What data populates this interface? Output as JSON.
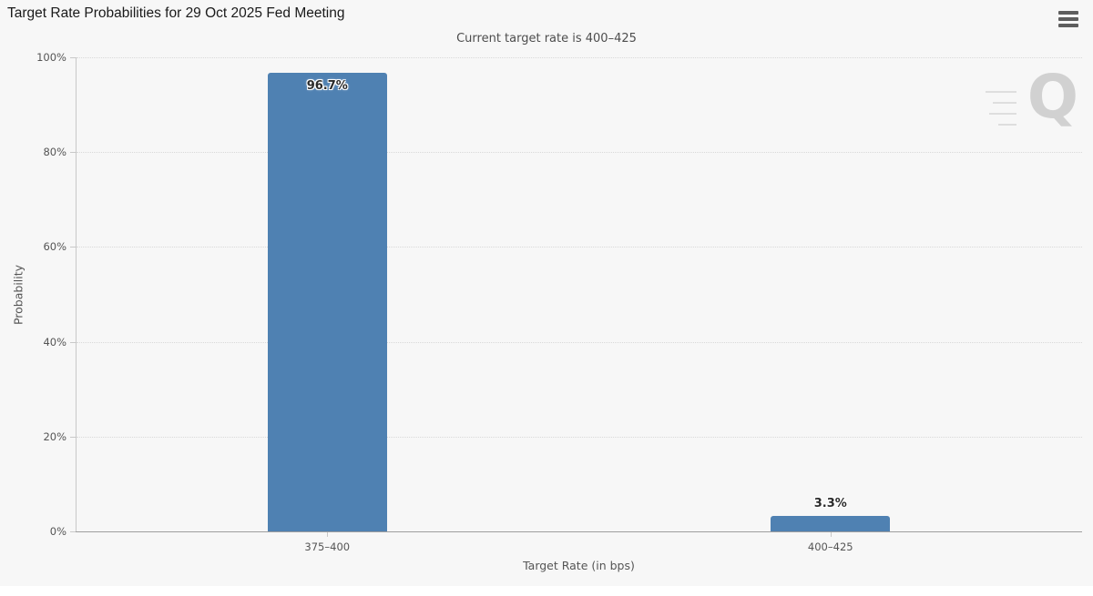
{
  "header": {
    "title": "Target Rate Probabilities for 29 Oct 2025 Fed Meeting",
    "subtitle": "Current target rate is 400–425"
  },
  "watermark": {
    "letter": "Q"
  },
  "chart_data": {
    "type": "bar",
    "title": "Target Rate Probabilities for 29 Oct 2025 Fed Meeting",
    "subtitle": "Current target rate is 400–425",
    "categories": [
      "375–400",
      "400–425"
    ],
    "values": [
      96.7,
      3.3
    ],
    "data_labels": [
      "96.7%",
      "3.3%"
    ],
    "xlabel": "Target Rate (in bps)",
    "ylabel": "Probability",
    "ylim": [
      0,
      100
    ],
    "yticks": [
      0,
      20,
      40,
      60,
      80,
      100
    ],
    "ytick_labels": [
      "0%",
      "20%",
      "40%",
      "60%",
      "80%",
      "100%"
    ],
    "grid": "horizontal-dotted",
    "legend": "none",
    "bar_color": "#4f81b2"
  },
  "colors": {
    "background": "#f7f7f7",
    "bar": "#4f81b2",
    "axis_line": "#c8c8c8",
    "baseline": "#9e9e9e",
    "grid_line": "#d9d9d9",
    "tick_text": "#555555",
    "title_text": "#1a1a1a",
    "subtitle_text": "#4d4d4d",
    "menu_icon": "#5e5e5e",
    "watermark": "#cbcbcb",
    "data_label_text": "#2b2b2b"
  }
}
